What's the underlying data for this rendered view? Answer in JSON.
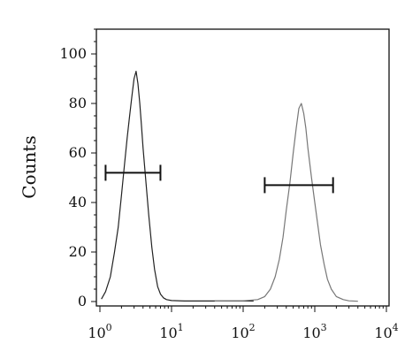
{
  "chart_data": {
    "type": "line",
    "title": "",
    "xlabel": "",
    "ylabel": "Counts",
    "x_scale": "log",
    "xlim": [
      1,
      10000
    ],
    "ylim": [
      0,
      110
    ],
    "grid": false,
    "legend": "none",
    "y_ticks": [
      0,
      20,
      40,
      60,
      80,
      100
    ],
    "y_tick_labels": [
      "0",
      "20",
      "40",
      "60",
      "80",
      "100"
    ],
    "x_ticks": [
      1,
      10,
      100,
      1000,
      10000
    ],
    "x_tick_labels": [
      {
        "base": "10",
        "exp": "0"
      },
      {
        "base": "10",
        "exp": "1"
      },
      {
        "base": "10",
        "exp": "2"
      },
      {
        "base": "10",
        "exp": "3"
      },
      {
        "base": "10",
        "exp": "4"
      }
    ],
    "series": [
      {
        "color": "#222222",
        "x": [
          1.05,
          1.2,
          1.4,
          1.6,
          1.8,
          2.0,
          2.2,
          2.4,
          2.6,
          2.8,
          3.0,
          3.2,
          3.4,
          3.6,
          3.8,
          4.0,
          4.4,
          4.8,
          5.3,
          5.8,
          6.4,
          7.0,
          7.7,
          8.5,
          10,
          15,
          30,
          60,
          100,
          140
        ],
        "y": [
          1,
          4,
          10,
          20,
          30,
          43,
          55,
          66,
          75,
          83,
          90,
          93,
          88,
          80,
          71,
          62,
          48,
          35,
          22,
          13,
          6,
          3,
          1.5,
          0.8,
          0.4,
          0.2,
          0.2,
          0.2,
          0.2,
          0.2
        ]
      },
      {
        "color": "#777777",
        "x": [
          40,
          100,
          160,
          200,
          240,
          280,
          320,
          360,
          400,
          450,
          500,
          550,
          600,
          650,
          700,
          750,
          800,
          900,
          1000,
          1100,
          1200,
          1350,
          1500,
          1700,
          2000,
          2500,
          3000,
          4000
        ],
        "y": [
          0.2,
          0.3,
          0.8,
          2,
          5,
          10,
          17,
          26,
          37,
          48,
          60,
          70,
          78,
          80,
          76,
          70,
          62,
          50,
          40,
          31,
          23,
          15,
          9,
          5,
          2,
          0.8,
          0.3,
          0.1
        ]
      }
    ],
    "gates": [
      {
        "x_start": 1.2,
        "x_end": 7.0,
        "y": 52
      },
      {
        "x_start": 200,
        "x_end": 1800,
        "y": 47
      }
    ]
  }
}
